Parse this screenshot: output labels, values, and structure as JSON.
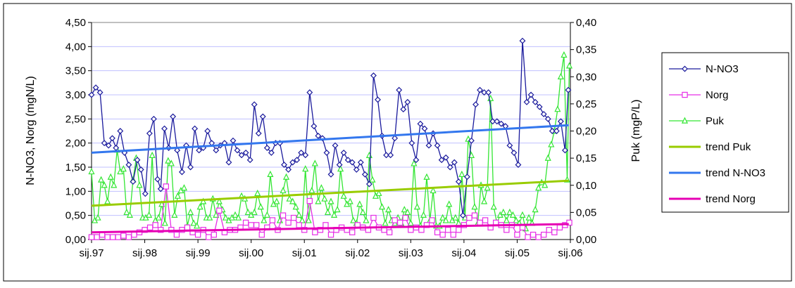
{
  "chart_data": {
    "type": "line",
    "title": "",
    "y_left": {
      "label": "N-NO3, Norg (mgN/L)",
      "ylim": [
        0,
        4.5
      ],
      "ticks": [
        "0,00",
        "0,50",
        "1,00",
        "1,50",
        "2,00",
        "2,50",
        "3,00",
        "3,50",
        "4,00",
        "4,50"
      ]
    },
    "y_right": {
      "label": "Puk (mgP/L)",
      "ylim": [
        0,
        0.4
      ],
      "ticks": [
        "0,00",
        "0,05",
        "0,10",
        "0,15",
        "0,20",
        "0,25",
        "0,30",
        "0,35",
        "0,40"
      ]
    },
    "x_axis": {
      "xlim": [
        1997.0,
        2006.0
      ],
      "tick_labels": [
        "sij.97",
        "sij.98",
        "sij.99",
        "sij.00",
        "sij.01",
        "sij.02",
        "sij.03",
        "sij.04",
        "sij.05",
        "sij.06"
      ]
    },
    "grid": true,
    "legend_position": "right",
    "series": [
      {
        "name": "N-NO3",
        "axis": "left",
        "color": "#1a1a9c",
        "marker": "diamond",
        "x": [
          1997.0,
          1997.08,
          1997.16,
          1997.24,
          1997.32,
          1997.39,
          1997.46,
          1997.54,
          1997.62,
          1997.7,
          1997.78,
          1997.86,
          1997.93,
          1998.01,
          1998.09,
          1998.17,
          1998.24,
          1998.3,
          1998.37,
          1998.45,
          1998.53,
          1998.61,
          1998.7,
          1998.78,
          1998.86,
          1998.94,
          1999.02,
          1999.1,
          1999.18,
          1999.26,
          1999.34,
          1999.42,
          1999.5,
          1999.58,
          1999.66,
          1999.74,
          1999.82,
          1999.9,
          1999.98,
          2000.06,
          2000.14,
          2000.22,
          2000.3,
          2000.38,
          2000.46,
          2000.54,
          2000.62,
          2000.7,
          2000.78,
          2000.86,
          2000.94,
          2001.02,
          2001.1,
          2001.18,
          2001.26,
          2001.34,
          2001.42,
          2001.5,
          2001.58,
          2001.66,
          2001.74,
          2001.82,
          2001.9,
          2001.98,
          2002.06,
          2002.14,
          2002.22,
          2002.3,
          2002.38,
          2002.46,
          2002.54,
          2002.62,
          2002.7,
          2002.78,
          2002.86,
          2002.94,
          2003.02,
          2003.1,
          2003.18,
          2003.26,
          2003.34,
          2003.42,
          2003.5,
          2003.58,
          2003.66,
          2003.74,
          2003.82,
          2003.9,
          2003.98,
          2004.06,
          2004.14,
          2004.22,
          2004.3,
          2004.38,
          2004.46,
          2004.54,
          2004.62,
          2004.7,
          2004.78,
          2004.86,
          2004.94,
          2005.02,
          2005.1,
          2005.18,
          2005.26,
          2005.34,
          2005.42,
          2005.5,
          2005.58,
          2005.66,
          2005.74,
          2005.82,
          2005.9,
          2005.96
        ],
        "values": [
          3.0,
          3.15,
          3.05,
          2.0,
          1.95,
          2.1,
          1.9,
          2.25,
          1.8,
          1.55,
          1.2,
          1.65,
          1.45,
          0.95,
          2.2,
          2.5,
          1.25,
          1.05,
          2.3,
          1.9,
          2.55,
          1.85,
          1.4,
          1.95,
          1.5,
          2.3,
          1.85,
          1.9,
          2.25,
          2.0,
          1.85,
          1.95,
          2.0,
          1.6,
          2.05,
          1.85,
          1.75,
          1.8,
          1.65,
          2.8,
          2.2,
          2.55,
          1.9,
          1.8,
          2.0,
          2.0,
          1.55,
          1.45,
          1.6,
          1.65,
          1.8,
          1.75,
          3.05,
          2.35,
          2.15,
          2.1,
          1.8,
          1.35,
          1.95,
          1.55,
          1.8,
          1.65,
          1.6,
          1.45,
          1.6,
          1.35,
          1.15,
          3.4,
          2.9,
          2.15,
          1.75,
          1.75,
          2.1,
          3.1,
          2.7,
          2.85,
          2.0,
          1.65,
          2.4,
          2.3,
          1.95,
          2.2,
          1.95,
          1.65,
          1.7,
          1.5,
          1.6,
          1.2,
          0.5,
          1.3,
          2.05,
          2.8,
          3.1,
          3.05,
          3.05,
          2.45,
          2.45,
          2.4,
          2.35,
          1.95,
          1.8,
          1.55,
          4.12,
          2.85,
          3.0,
          2.85,
          2.75,
          2.6,
          2.5,
          2.25,
          2.25,
          2.45,
          1.85,
          3.1
        ]
      },
      {
        "name": "Norg",
        "axis": "left",
        "color": "#e62ee6",
        "marker": "square",
        "x": [
          1997.0,
          1997.1,
          1997.2,
          1997.3,
          1997.4,
          1997.5,
          1997.6,
          1997.7,
          1997.8,
          1997.9,
          1998.0,
          1998.1,
          1998.2,
          1998.3,
          1998.4,
          1998.5,
          1998.6,
          1998.7,
          1998.8,
          1998.9,
          1999.0,
          1999.1,
          1999.2,
          1999.3,
          1999.4,
          1999.5,
          1999.6,
          1999.7,
          1999.8,
          1999.9,
          2000.0,
          2000.1,
          2000.2,
          2000.3,
          2000.4,
          2000.5,
          2000.6,
          2000.7,
          2000.8,
          2000.9,
          2001.0,
          2001.1,
          2001.2,
          2001.3,
          2001.4,
          2001.5,
          2001.6,
          2001.7,
          2001.8,
          2001.9,
          2002.0,
          2002.1,
          2002.2,
          2002.3,
          2002.4,
          2002.5,
          2002.6,
          2002.7,
          2002.8,
          2002.9,
          2003.0,
          2003.1,
          2003.2,
          2003.3,
          2003.4,
          2003.5,
          2003.6,
          2003.7,
          2003.8,
          2003.9,
          2004.0,
          2004.1,
          2004.2,
          2004.3,
          2004.4,
          2004.5,
          2004.6,
          2004.7,
          2004.8,
          2004.9,
          2005.0,
          2005.1,
          2005.2,
          2005.3,
          2005.4,
          2005.5,
          2005.6,
          2005.7,
          2005.8,
          2005.9,
          2005.98
        ],
        "values": [
          0.05,
          0.05,
          0.1,
          0.05,
          0.05,
          0.05,
          0.08,
          0.05,
          0.1,
          0.15,
          0.2,
          0.25,
          0.3,
          0.2,
          1.1,
          0.2,
          0.1,
          0.2,
          0.25,
          0.15,
          0.1,
          0.2,
          0.05,
          0.1,
          0.6,
          0.15,
          0.2,
          0.2,
          0.25,
          0.35,
          0.3,
          0.3,
          0.1,
          0.25,
          0.4,
          0.2,
          0.5,
          0.35,
          0.45,
          0.3,
          0.2,
          0.8,
          0.15,
          0.2,
          0.3,
          0.1,
          0.2,
          0.25,
          0.2,
          0.15,
          0.3,
          0.25,
          0.2,
          0.45,
          0.25,
          0.2,
          0.15,
          0.4,
          0.35,
          0.45,
          0.2,
          0.25,
          0.2,
          0.3,
          0.4,
          0.15,
          0.1,
          0.2,
          0.1,
          0.2,
          0.3,
          0.45,
          0.5,
          0.35,
          0.4,
          0.25,
          0.35,
          0.3,
          0.2,
          0.3,
          0.1,
          0.25,
          0.05,
          0.1,
          0.05,
          0.1,
          0.2,
          0.15,
          0.25,
          0.3,
          0.35
        ]
      },
      {
        "name": "Puk",
        "axis": "right",
        "color": "#33e633",
        "marker": "triangle",
        "x": [
          1997.0,
          1997.06,
          1997.12,
          1997.18,
          1997.24,
          1997.3,
          1997.36,
          1997.42,
          1997.48,
          1997.54,
          1997.6,
          1997.66,
          1997.72,
          1997.78,
          1997.84,
          1997.9,
          1997.96,
          1998.02,
          1998.08,
          1998.14,
          1998.2,
          1998.26,
          1998.32,
          1998.38,
          1998.44,
          1998.5,
          1998.56,
          1998.62,
          1998.68,
          1998.74,
          1998.8,
          1998.86,
          1998.92,
          1998.98,
          1999.04,
          1999.1,
          1999.16,
          1999.22,
          1999.28,
          1999.34,
          1999.4,
          1999.46,
          1999.52,
          1999.58,
          1999.64,
          1999.7,
          1999.76,
          1999.82,
          1999.88,
          1999.94,
          2000.0,
          2000.06,
          2000.12,
          2000.18,
          2000.24,
          2000.3,
          2000.36,
          2000.42,
          2000.48,
          2000.54,
          2000.6,
          2000.66,
          2000.72,
          2000.78,
          2000.84,
          2000.9,
          2000.96,
          2001.02,
          2001.08,
          2001.14,
          2001.2,
          2001.26,
          2001.32,
          2001.38,
          2001.44,
          2001.5,
          2001.56,
          2001.62,
          2001.68,
          2001.74,
          2001.8,
          2001.86,
          2001.92,
          2001.98,
          2002.04,
          2002.1,
          2002.16,
          2002.22,
          2002.28,
          2002.34,
          2002.4,
          2002.46,
          2002.52,
          2002.58,
          2002.64,
          2002.7,
          2002.76,
          2002.82,
          2002.88,
          2002.94,
          2003.0,
          2003.06,
          2003.12,
          2003.18,
          2003.24,
          2003.3,
          2003.36,
          2003.42,
          2003.48,
          2003.54,
          2003.6,
          2003.66,
          2003.72,
          2003.78,
          2003.84,
          2003.9,
          2003.96,
          2004.02,
          2004.08,
          2004.14,
          2004.2,
          2004.26,
          2004.32,
          2004.38,
          2004.44,
          2004.5,
          2004.56,
          2004.62,
          2004.68,
          2004.74,
          2004.8,
          2004.86,
          2004.92,
          2004.98,
          2005.04,
          2005.1,
          2005.16,
          2005.22,
          2005.28,
          2005.34,
          2005.4,
          2005.46,
          2005.52,
          2005.58,
          2005.64,
          2005.7,
          2005.76,
          2005.82,
          2005.88,
          2005.94,
          2005.98
        ],
        "values": [
          0.125,
          0.035,
          0.04,
          0.11,
          0.1,
          0.07,
          0.115,
          0.1,
          0.165,
          0.125,
          0.13,
          0.05,
          0.045,
          0.11,
          0.15,
          0.1,
          0.04,
          0.04,
          0.045,
          0.155,
          0.035,
          0.04,
          0.065,
          0.03,
          0.145,
          0.14,
          0.045,
          0.08,
          0.09,
          0.095,
          0.025,
          0.05,
          0.03,
          0.025,
          0.06,
          0.07,
          0.04,
          0.04,
          0.075,
          0.045,
          0.07,
          0.055,
          0.04,
          0.035,
          0.04,
          0.045,
          0.04,
          0.08,
          0.075,
          0.05,
          0.045,
          0.05,
          0.085,
          0.06,
          0.035,
          0.045,
          0.12,
          0.065,
          0.07,
          0.035,
          0.09,
          0.115,
          0.075,
          0.07,
          0.06,
          0.045,
          0.035,
          0.13,
          0.035,
          0.09,
          0.14,
          0.07,
          0.095,
          0.075,
          0.05,
          0.07,
          0.045,
          0.055,
          0.13,
          0.08,
          0.065,
          0.07,
          0.035,
          0.03,
          0.065,
          0.05,
          0.035,
          0.155,
          0.11,
          0.08,
          0.085,
          0.06,
          0.03,
          0.055,
          0.035,
          0.03,
          0.04,
          0.03,
          0.055,
          0.05,
          0.03,
          0.14,
          0.06,
          0.025,
          0.045,
          0.115,
          0.035,
          0.09,
          0.025,
          0.025,
          0.04,
          0.035,
          0.065,
          0.035,
          0.04,
          0.03,
          0.12,
          0.04,
          0.185,
          0.155,
          0.06,
          0.03,
          0.1,
          0.07,
          0.095,
          0.26,
          0.06,
          0.03,
          0.045,
          0.05,
          0.035,
          0.05,
          0.045,
          0.035,
          0.03,
          0.045,
          0.02,
          0.04,
          0.03,
          0.055,
          0.095,
          0.105,
          0.1,
          0.15,
          0.175,
          0.2,
          0.24,
          0.3,
          0.34,
          0.11,
          0.32
        ]
      },
      {
        "name": "trend Puk",
        "axis": "left",
        "color": "#99cc00",
        "marker": "none",
        "x": [
          1997.0,
          2005.97
        ],
        "values": [
          0.7,
          1.22
        ]
      },
      {
        "name": "trend N-NO3",
        "axis": "left",
        "color": "#3377ee",
        "marker": "none",
        "x": [
          1997.0,
          2005.97
        ],
        "values": [
          1.8,
          2.37
        ]
      },
      {
        "name": "trend Norg",
        "axis": "left",
        "color": "#e600b3",
        "marker": "none",
        "x": [
          1997.0,
          2005.97
        ],
        "values": [
          0.15,
          0.32
        ]
      }
    ]
  }
}
